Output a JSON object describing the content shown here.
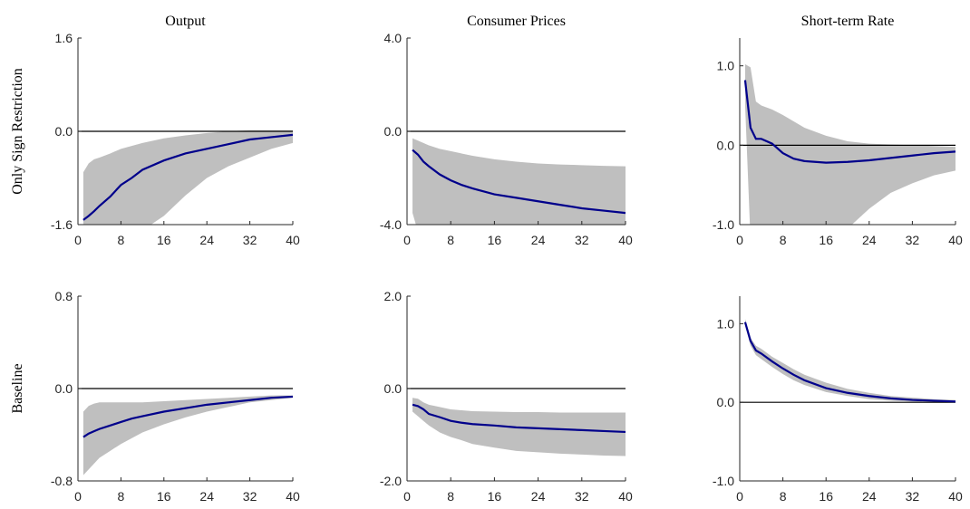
{
  "chart_data": [
    {
      "type": "band-line",
      "title": "Output",
      "ylabel": "Only Sign Restriction",
      "x": [
        1,
        2,
        3,
        4,
        6,
        8,
        10,
        12,
        16,
        20,
        24,
        28,
        32,
        36,
        40
      ],
      "median": [
        -1.52,
        -1.45,
        -1.37,
        -1.28,
        -1.12,
        -0.92,
        -0.8,
        -0.66,
        -0.5,
        -0.38,
        -0.3,
        -0.22,
        -0.14,
        -0.1,
        -0.06
      ],
      "upper": [
        -0.7,
        -0.55,
        -0.48,
        -0.45,
        -0.38,
        -0.3,
        -0.25,
        -0.2,
        -0.12,
        -0.07,
        -0.03,
        0.0,
        0.02,
        0.02,
        0.02
      ],
      "lower": [
        -2.4,
        -2.3,
        -2.2,
        -2.1,
        -2.0,
        -1.9,
        -1.8,
        -1.7,
        -1.45,
        -1.1,
        -0.8,
        -0.6,
        -0.45,
        -0.3,
        -0.2
      ],
      "line_color": "#00008b",
      "band_color": "#bfbfbf",
      "hline": 0,
      "xlim": [
        0,
        40
      ],
      "xticks": [
        0,
        8,
        16,
        24,
        32,
        40
      ],
      "ylim": [
        -1.6,
        1.6
      ],
      "yticks": [
        {
          "value": -1.6,
          "label": "-1.6"
        },
        {
          "value": 0,
          "label": "0.0"
        },
        {
          "value": 1.6,
          "label": "1.6"
        }
      ]
    },
    {
      "type": "band-line",
      "title": "Consumer Prices",
      "x": [
        1,
        2,
        3,
        4,
        6,
        8,
        10,
        12,
        16,
        20,
        24,
        28,
        32,
        36,
        40
      ],
      "median": [
        -0.8,
        -1.0,
        -1.3,
        -1.5,
        -1.85,
        -2.1,
        -2.3,
        -2.45,
        -2.7,
        -2.85,
        -3.0,
        -3.15,
        -3.3,
        -3.4,
        -3.5
      ],
      "upper": [
        -0.3,
        -0.4,
        -0.5,
        -0.6,
        -0.75,
        -0.85,
        -0.95,
        -1.05,
        -1.2,
        -1.3,
        -1.38,
        -1.42,
        -1.45,
        -1.48,
        -1.5
      ],
      "lower": [
        -3.5,
        -4.3,
        -4.8,
        -5,
        -5,
        -5,
        -5,
        -5,
        -5,
        -5,
        -5,
        -5,
        -5,
        -5,
        -5
      ],
      "line_color": "#00008b",
      "band_color": "#bfbfbf",
      "hline": 0,
      "xlim": [
        0,
        40
      ],
      "xticks": [
        0,
        8,
        16,
        24,
        32,
        40
      ],
      "ylim": [
        -4,
        4
      ],
      "yticks": [
        {
          "value": -4,
          "label": "-4.0"
        },
        {
          "value": 0,
          "label": "0.0"
        },
        {
          "value": 4,
          "label": "4.0"
        }
      ]
    },
    {
      "type": "band-line",
      "title": "Short-term Rate",
      "x": [
        1,
        2,
        3,
        4,
        6,
        8,
        10,
        12,
        16,
        20,
        24,
        28,
        32,
        36,
        40
      ],
      "median": [
        0.82,
        0.22,
        0.08,
        0.08,
        0.02,
        -0.1,
        -0.17,
        -0.2,
        -0.22,
        -0.21,
        -0.19,
        -0.16,
        -0.13,
        -0.1,
        -0.08
      ],
      "upper": [
        1.02,
        0.98,
        0.55,
        0.5,
        0.45,
        0.38,
        0.3,
        0.22,
        0.12,
        0.05,
        0.02,
        0.01,
        0.0,
        -0.01,
        -0.02
      ],
      "lower": [
        0.5,
        -1.2,
        -1.3,
        -1.3,
        -1.3,
        -1.3,
        -1.3,
        -1.3,
        -1.3,
        -1.05,
        -0.8,
        -0.6,
        -0.48,
        -0.38,
        -0.32
      ],
      "line_color": "#00008b",
      "band_color": "#bfbfbf",
      "hline": 0,
      "xlim": [
        0,
        40
      ],
      "xticks": [
        0,
        8,
        16,
        24,
        32,
        40
      ],
      "ylim": [
        -1,
        1.35
      ],
      "yticks": [
        {
          "value": -1,
          "label": "-1.0"
        },
        {
          "value": 0,
          "label": "0.0"
        },
        {
          "value": 1,
          "label": "1.0"
        }
      ]
    },
    {
      "type": "band-line",
      "ylabel": "Baseline",
      "x": [
        1,
        2,
        3,
        4,
        6,
        8,
        10,
        12,
        16,
        20,
        24,
        28,
        32,
        36,
        40
      ],
      "median": [
        -0.42,
        -0.39,
        -0.37,
        -0.35,
        -0.32,
        -0.29,
        -0.26,
        -0.24,
        -0.2,
        -0.17,
        -0.14,
        -0.12,
        -0.1,
        -0.08,
        -0.07
      ],
      "upper": [
        -0.2,
        -0.15,
        -0.13,
        -0.12,
        -0.12,
        -0.12,
        -0.12,
        -0.12,
        -0.11,
        -0.1,
        -0.09,
        -0.08,
        -0.07,
        -0.06,
        -0.06
      ],
      "lower": [
        -0.75,
        -0.7,
        -0.65,
        -0.6,
        -0.54,
        -0.48,
        -0.43,
        -0.38,
        -0.31,
        -0.25,
        -0.2,
        -0.16,
        -0.12,
        -0.1,
        -0.08
      ],
      "line_color": "#00008b",
      "band_color": "#bfbfbf",
      "hline": 0,
      "xlim": [
        0,
        40
      ],
      "xticks": [
        0,
        8,
        16,
        24,
        32,
        40
      ],
      "ylim": [
        -0.8,
        0.8
      ],
      "yticks": [
        {
          "value": -0.8,
          "label": "-0.8"
        },
        {
          "value": 0,
          "label": "0.0"
        },
        {
          "value": 0.8,
          "label": "0.8"
        }
      ]
    },
    {
      "type": "band-line",
      "x": [
        1,
        2,
        3,
        4,
        6,
        8,
        10,
        12,
        16,
        20,
        24,
        28,
        32,
        36,
        40
      ],
      "median": [
        -0.35,
        -0.38,
        -0.45,
        -0.55,
        -0.62,
        -0.7,
        -0.74,
        -0.77,
        -0.8,
        -0.84,
        -0.86,
        -0.88,
        -0.9,
        -0.92,
        -0.94
      ],
      "upper": [
        -0.2,
        -0.22,
        -0.3,
        -0.35,
        -0.4,
        -0.45,
        -0.47,
        -0.49,
        -0.5,
        -0.51,
        -0.51,
        -0.52,
        -0.52,
        -0.52,
        -0.52
      ],
      "lower": [
        -0.5,
        -0.6,
        -0.7,
        -0.8,
        -0.95,
        -1.05,
        -1.12,
        -1.2,
        -1.28,
        -1.35,
        -1.38,
        -1.41,
        -1.43,
        -1.45,
        -1.46
      ],
      "line_color": "#00008b",
      "band_color": "#bfbfbf",
      "hline": 0,
      "xlim": [
        0,
        40
      ],
      "xticks": [
        0,
        8,
        16,
        24,
        32,
        40
      ],
      "ylim": [
        -2,
        2
      ],
      "yticks": [
        {
          "value": -2,
          "label": "-2.0"
        },
        {
          "value": 0,
          "label": "0.0"
        },
        {
          "value": 2,
          "label": "2.0"
        }
      ]
    },
    {
      "type": "band-line",
      "x": [
        1,
        2,
        3,
        4,
        6,
        8,
        10,
        12,
        16,
        20,
        24,
        28,
        32,
        36,
        40
      ],
      "median": [
        1.02,
        0.78,
        0.66,
        0.62,
        0.52,
        0.43,
        0.35,
        0.28,
        0.18,
        0.12,
        0.08,
        0.05,
        0.03,
        0.02,
        0.01
      ],
      "upper": [
        1.06,
        0.82,
        0.72,
        0.68,
        0.58,
        0.5,
        0.42,
        0.35,
        0.25,
        0.17,
        0.12,
        0.08,
        0.06,
        0.04,
        0.03
      ],
      "lower": [
        0.98,
        0.72,
        0.6,
        0.55,
        0.45,
        0.36,
        0.28,
        0.22,
        0.13,
        0.08,
        0.04,
        0.02,
        0.01,
        0.0,
        0.0
      ],
      "line_color": "#00008b",
      "band_color": "#bfbfbf",
      "hline": 0,
      "xlim": [
        0,
        40
      ],
      "xticks": [
        0,
        8,
        16,
        24,
        32,
        40
      ],
      "ylim": [
        -1,
        1.35
      ],
      "yticks": [
        {
          "value": -1,
          "label": "-1.0"
        },
        {
          "value": 0,
          "label": "0.0"
        },
        {
          "value": 1,
          "label": "1.0"
        }
      ]
    }
  ]
}
